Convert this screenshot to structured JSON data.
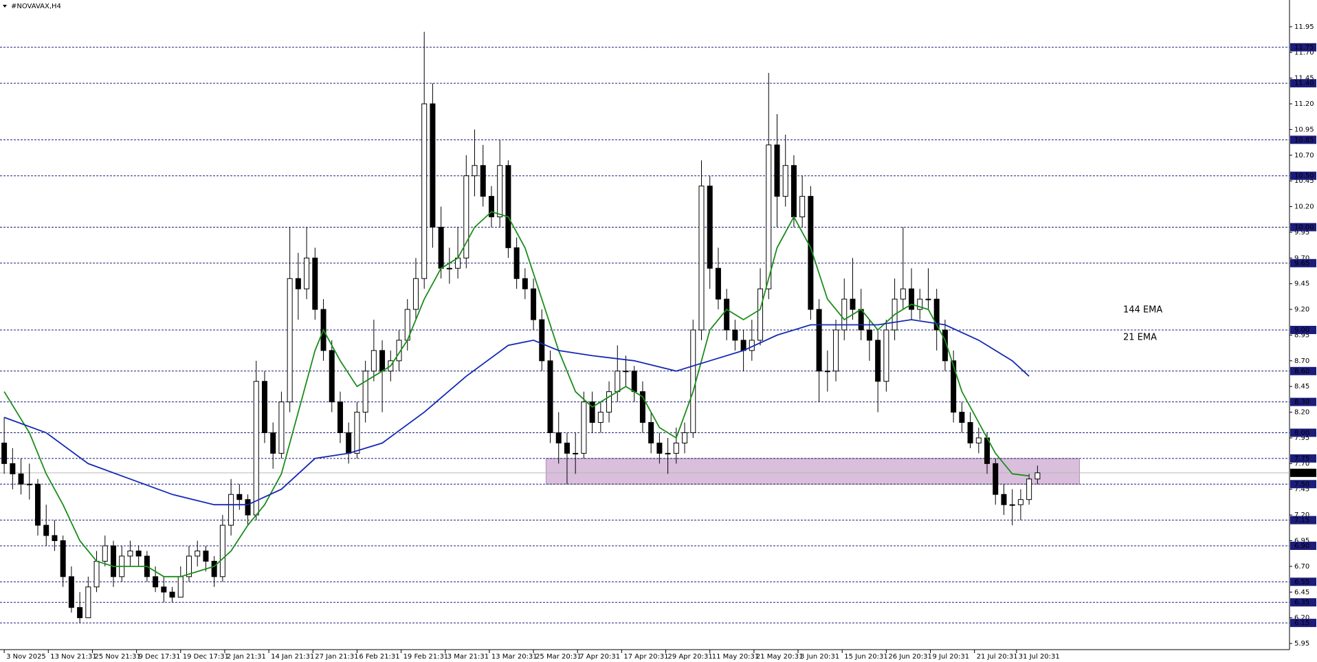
{
  "chart_data": {
    "type": "candlestick",
    "title": "#NOVAVAX,H4",
    "up_color": "#ffffff",
    "down_color": "#000000",
    "ylim": [
      5.89,
      12.21
    ],
    "xlim": [
      -0.5,
      153
    ],
    "yticks": [
      11.95,
      {
        "value": 11.7,
        "label": "11.70"
      },
      11.45,
      {
        "value": 11.2,
        "label": "11.20"
      },
      10.95,
      {
        "value": 10.7,
        "label": "10.70"
      },
      10.45,
      {
        "value": 10.2,
        "label": "10.20"
      },
      9.95,
      {
        "value": 9.7,
        "label": "9.70"
      },
      9.45,
      {
        "value": 9.2,
        "label": "9.20"
      },
      8.95,
      {
        "value": 8.7,
        "label": "8.70"
      },
      8.45,
      {
        "value": 8.2,
        "label": "8.20"
      },
      7.95,
      {
        "value": 7.7,
        "label": "7.70"
      },
      7.45,
      {
        "value": 7.2,
        "label": "7.20"
      },
      6.95,
      {
        "value": 6.7,
        "label": "6.70"
      },
      6.45,
      {
        "value": 6.2,
        "label": "6.20"
      },
      5.95
    ],
    "xticks": [
      {
        "value": 0,
        "label": "3 Nov 2025"
      },
      {
        "value": 5.25,
        "label": "13 Nov 21:31"
      },
      {
        "value": 10.5,
        "label": "25 Nov 21:31"
      },
      {
        "value": 15.75,
        "label": "9 Dec 17:31"
      },
      {
        "value": 21,
        "label": "19 Dec 17:31"
      },
      {
        "value": 26.25,
        "label": "2 Jan 21:31"
      },
      {
        "value": 31.5,
        "label": "14 Jan 21:31"
      },
      {
        "value": 36.75,
        "label": "27 Jan 21:31"
      },
      {
        "value": 42,
        "label": "6 Feb 21:31"
      },
      {
        "value": 47.25,
        "label": "19 Feb 21:31"
      },
      {
        "value": 52.5,
        "label": "3 Mar 21:31"
      },
      {
        "value": 57.75,
        "label": "13 Mar 20:31"
      },
      {
        "value": 63,
        "label": "25 Mar 20:31"
      },
      {
        "value": 68.25,
        "label": "7 Apr 20:31"
      },
      {
        "value": 73.5,
        "label": "17 Apr 20:31"
      },
      {
        "value": 78.75,
        "label": "29 Apr 20:31"
      },
      {
        "value": 84,
        "label": "11 May 20:31"
      },
      {
        "value": 89.25,
        "label": "21 May 20:31"
      },
      {
        "value": 94.5,
        "label": "3 Jun 20:31"
      },
      {
        "value": 99.75,
        "label": "15 Jun 20:31"
      },
      {
        "value": 105,
        "label": "26 Jun 20:31"
      },
      {
        "value": 110.25,
        "label": "9 Jul 20:31"
      },
      {
        "value": 115.5,
        "label": "21 Jul 20:31"
      },
      {
        "value": 120.5,
        "label": "31 Jul 20:31"
      }
    ],
    "levels": [
      11.75,
      {
        "value": 11.4,
        "label": "11.40"
      },
      10.85,
      {
        "value": 10.5,
        "label": "10.50"
      },
      {
        "value": 10,
        "label": "10.00"
      },
      9.65,
      {
        "value": 9,
        "label": "9.00"
      },
      {
        "value": 8.6,
        "label": "8.60"
      },
      {
        "value": 8.3,
        "label": "8.30"
      },
      {
        "value": 8,
        "label": "8.00"
      },
      7.75,
      {
        "value": 7.5,
        "label": "7.50"
      },
      7.15,
      {
        "value": 6.9,
        "label": "6.90"
      },
      6.55,
      6.35,
      6.15
    ],
    "level_color": "#1c1c7a",
    "current_price": 7.61,
    "zone": {
      "ylim": [
        7.5,
        7.75
      ],
      "xlim": [
        64.5,
        128
      ],
      "color": "#d9bfdc"
    },
    "candles": [
      [
        7.9,
        8.15,
        7.6,
        7.7
      ],
      [
        7.7,
        7.85,
        7.45,
        7.6
      ],
      [
        7.6,
        7.75,
        7.4,
        7.5
      ],
      [
        7.5,
        7.7,
        7.35,
        7.5
      ],
      [
        7.5,
        7.55,
        7.0,
        7.1
      ],
      [
        7.1,
        7.3,
        6.9,
        7.0
      ],
      [
        7.0,
        7.15,
        6.85,
        6.95
      ],
      [
        6.95,
        7.0,
        6.5,
        6.6
      ],
      [
        6.6,
        6.7,
        6.25,
        6.3
      ],
      [
        6.3,
        6.45,
        6.15,
        6.2
      ],
      [
        6.2,
        6.6,
        6.2,
        6.5
      ],
      [
        6.5,
        6.85,
        6.45,
        6.75
      ],
      [
        6.75,
        7.0,
        6.7,
        6.9
      ],
      [
        6.9,
        6.95,
        6.5,
        6.6
      ],
      [
        6.6,
        6.9,
        6.55,
        6.8
      ],
      [
        6.8,
        6.95,
        6.7,
        6.85
      ],
      [
        6.85,
        6.9,
        6.7,
        6.8
      ],
      [
        6.8,
        6.85,
        6.55,
        6.6
      ],
      [
        6.6,
        6.7,
        6.45,
        6.5
      ],
      [
        6.5,
        6.6,
        6.35,
        6.45
      ],
      [
        6.45,
        6.5,
        6.35,
        6.4
      ],
      [
        6.4,
        6.7,
        6.4,
        6.6
      ],
      [
        6.6,
        6.9,
        6.55,
        6.8
      ],
      [
        6.8,
        6.95,
        6.7,
        6.85
      ],
      [
        6.85,
        6.9,
        6.65,
        6.75
      ],
      [
        6.75,
        6.8,
        6.5,
        6.6
      ],
      [
        6.6,
        7.2,
        6.55,
        7.1
      ],
      [
        7.1,
        7.55,
        7.0,
        7.4
      ],
      [
        7.4,
        7.5,
        7.25,
        7.35
      ],
      [
        7.35,
        7.4,
        7.1,
        7.2
      ],
      [
        7.2,
        8.7,
        7.15,
        8.5
      ],
      [
        8.5,
        8.6,
        7.9,
        8.0
      ],
      [
        8.0,
        8.1,
        7.65,
        7.8
      ],
      [
        7.8,
        8.4,
        7.75,
        8.3
      ],
      [
        8.3,
        10.0,
        8.2,
        9.5
      ],
      [
        9.5,
        9.75,
        9.1,
        9.4
      ],
      [
        9.4,
        10.0,
        9.3,
        9.7
      ],
      [
        9.7,
        9.8,
        9.1,
        9.2
      ],
      [
        9.2,
        9.3,
        8.7,
        8.8
      ],
      [
        8.8,
        8.9,
        8.2,
        8.3
      ],
      [
        8.3,
        8.4,
        7.9,
        8.0
      ],
      [
        8.0,
        8.1,
        7.7,
        7.8
      ],
      [
        7.8,
        8.3,
        7.75,
        8.2
      ],
      [
        8.2,
        8.7,
        8.1,
        8.6
      ],
      [
        8.6,
        9.1,
        8.5,
        8.8
      ],
      [
        8.8,
        8.9,
        8.2,
        8.6
      ],
      [
        8.6,
        8.8,
        8.5,
        8.7
      ],
      [
        8.7,
        9.0,
        8.6,
        8.9
      ],
      [
        8.9,
        9.3,
        8.8,
        9.2
      ],
      [
        9.2,
        9.7,
        9.1,
        9.5
      ],
      [
        9.5,
        11.9,
        9.4,
        11.2
      ],
      [
        11.2,
        11.4,
        9.8,
        10.0
      ],
      [
        10.0,
        10.2,
        9.5,
        9.6
      ],
      [
        9.6,
        9.8,
        9.45,
        9.6
      ],
      [
        9.6,
        10.0,
        9.5,
        9.7
      ],
      [
        9.7,
        10.7,
        9.6,
        10.5
      ],
      [
        10.5,
        10.95,
        10.3,
        10.6
      ],
      [
        10.6,
        10.8,
        10.2,
        10.3
      ],
      [
        10.3,
        10.4,
        10.0,
        10.1
      ],
      [
        10.1,
        10.85,
        10.0,
        10.6
      ],
      [
        10.6,
        10.65,
        9.7,
        9.8
      ],
      [
        9.8,
        9.9,
        9.4,
        9.5
      ],
      [
        9.5,
        9.6,
        9.3,
        9.4
      ],
      [
        9.4,
        9.5,
        9.0,
        9.1
      ],
      [
        9.1,
        9.2,
        8.6,
        8.7
      ],
      [
        8.7,
        8.8,
        7.9,
        8.0
      ],
      [
        8.0,
        8.2,
        7.7,
        7.9
      ],
      [
        7.9,
        8.0,
        7.5,
        7.8
      ],
      [
        7.8,
        8.0,
        7.6,
        7.8
      ],
      [
        7.8,
        8.4,
        7.75,
        8.3
      ],
      [
        8.3,
        8.4,
        8.0,
        8.1
      ],
      [
        8.1,
        8.3,
        8.0,
        8.2
      ],
      [
        8.2,
        8.5,
        8.1,
        8.4
      ],
      [
        8.4,
        8.85,
        8.3,
        8.6
      ],
      [
        8.6,
        8.75,
        8.45,
        8.6
      ],
      [
        8.6,
        8.65,
        8.3,
        8.4
      ],
      [
        8.4,
        8.5,
        8.0,
        8.1
      ],
      [
        8.1,
        8.2,
        7.8,
        7.9
      ],
      [
        7.9,
        8.0,
        7.7,
        7.8
      ],
      [
        7.8,
        7.95,
        7.6,
        7.8
      ],
      [
        7.8,
        8.05,
        7.7,
        7.9
      ],
      [
        7.9,
        8.1,
        7.8,
        8.0
      ],
      [
        8.0,
        9.1,
        7.95,
        9.0
      ],
      [
        9.0,
        10.65,
        8.9,
        10.4
      ],
      [
        10.4,
        10.5,
        9.4,
        9.6
      ],
      [
        9.6,
        9.8,
        9.2,
        9.3
      ],
      [
        9.3,
        9.4,
        8.9,
        9.0
      ],
      [
        9.0,
        9.1,
        8.8,
        8.9
      ],
      [
        8.9,
        9.0,
        8.6,
        8.8
      ],
      [
        8.8,
        9.1,
        8.7,
        8.9
      ],
      [
        8.9,
        9.6,
        8.85,
        9.4
      ],
      [
        9.4,
        11.5,
        9.3,
        10.8
      ],
      [
        10.8,
        11.1,
        10.0,
        10.3
      ],
      [
        10.3,
        10.9,
        10.2,
        10.6
      ],
      [
        10.6,
        10.7,
        10.0,
        10.1
      ],
      [
        10.1,
        10.5,
        10.0,
        10.3
      ],
      [
        10.3,
        10.4,
        9.1,
        9.2
      ],
      [
        9.2,
        9.3,
        8.3,
        8.6
      ],
      [
        8.6,
        8.8,
        8.4,
        8.6
      ],
      [
        8.6,
        9.1,
        8.5,
        9.0
      ],
      [
        9.0,
        9.5,
        8.9,
        9.3
      ],
      [
        9.3,
        9.7,
        9.1,
        9.2
      ],
      [
        9.2,
        9.4,
        8.9,
        9.0
      ],
      [
        9.0,
        9.1,
        8.7,
        8.9
      ],
      [
        8.9,
        9.0,
        8.2,
        8.5
      ],
      [
        8.5,
        9.1,
        8.4,
        9.0
      ],
      [
        9.0,
        9.5,
        8.9,
        9.3
      ],
      [
        9.3,
        10.0,
        9.2,
        9.4
      ],
      [
        9.4,
        9.6,
        9.1,
        9.2
      ],
      [
        9.2,
        9.4,
        9.1,
        9.3
      ],
      [
        9.3,
        9.6,
        9.2,
        9.3
      ],
      [
        9.3,
        9.4,
        8.8,
        9.0
      ],
      [
        9.0,
        9.1,
        8.6,
        8.7
      ],
      [
        8.7,
        8.8,
        8.1,
        8.2
      ],
      [
        8.2,
        8.3,
        8.0,
        8.1
      ],
      [
        8.1,
        8.2,
        7.85,
        7.9
      ],
      [
        7.9,
        8.05,
        7.8,
        7.95
      ],
      [
        7.95,
        8.0,
        7.6,
        7.7
      ],
      [
        7.7,
        7.75,
        7.3,
        7.4
      ],
      [
        7.4,
        7.5,
        7.2,
        7.3
      ],
      [
        7.3,
        7.45,
        7.1,
        7.3
      ],
      [
        7.3,
        7.45,
        7.15,
        7.35
      ],
      [
        7.35,
        7.6,
        7.3,
        7.55
      ],
      [
        7.55,
        7.68,
        7.5,
        7.61
      ]
    ],
    "series": [
      {
        "name": "21 EMA",
        "color": "#1a8c1a",
        "x": [
          0,
          3,
          5,
          7,
          9,
          11,
          13,
          15,
          17,
          19,
          21,
          23,
          25,
          27,
          29,
          31,
          33,
          35,
          37,
          38,
          40,
          42,
          44,
          46,
          48,
          50,
          52,
          54,
          56,
          58,
          60,
          62,
          64,
          66,
          68,
          70,
          72,
          74,
          76,
          78,
          80,
          82,
          84,
          86,
          88,
          90,
          92,
          94,
          96,
          98,
          100,
          102,
          104,
          106,
          108,
          110,
          112,
          114,
          116,
          118,
          120,
          122
        ],
        "values": [
          8.4,
          8.0,
          7.6,
          7.3,
          6.95,
          6.75,
          6.7,
          6.7,
          6.7,
          6.6,
          6.6,
          6.65,
          6.7,
          6.85,
          7.1,
          7.3,
          7.6,
          8.2,
          8.8,
          9.0,
          8.7,
          8.45,
          8.55,
          8.65,
          8.9,
          9.3,
          9.6,
          9.7,
          10.0,
          10.15,
          10.1,
          9.8,
          9.3,
          8.8,
          8.4,
          8.25,
          8.35,
          8.45,
          8.35,
          8.05,
          7.95,
          8.4,
          9.0,
          9.2,
          9.1,
          9.2,
          9.8,
          10.1,
          9.8,
          9.3,
          9.1,
          9.2,
          9.0,
          9.15,
          9.25,
          9.2,
          8.9,
          8.4,
          8.1,
          7.8,
          7.6,
          7.58
        ]
      },
      {
        "name": "144 EMA",
        "color": "#1428b4",
        "x": [
          0,
          5,
          10,
          15,
          20,
          25,
          29,
          33,
          37,
          41,
          45,
          50,
          55,
          60,
          63,
          66,
          70,
          75,
          80,
          84,
          88,
          92,
          96,
          100,
          104,
          108,
          112,
          116,
          120,
          122
        ],
        "values": [
          8.15,
          8.0,
          7.7,
          7.55,
          7.4,
          7.3,
          7.3,
          7.45,
          7.75,
          7.8,
          7.9,
          8.2,
          8.55,
          8.85,
          8.9,
          8.8,
          8.75,
          8.7,
          8.6,
          8.7,
          8.8,
          8.95,
          9.05,
          9.05,
          9.05,
          9.1,
          9.05,
          8.9,
          8.7,
          8.55
        ]
      }
    ]
  }
}
